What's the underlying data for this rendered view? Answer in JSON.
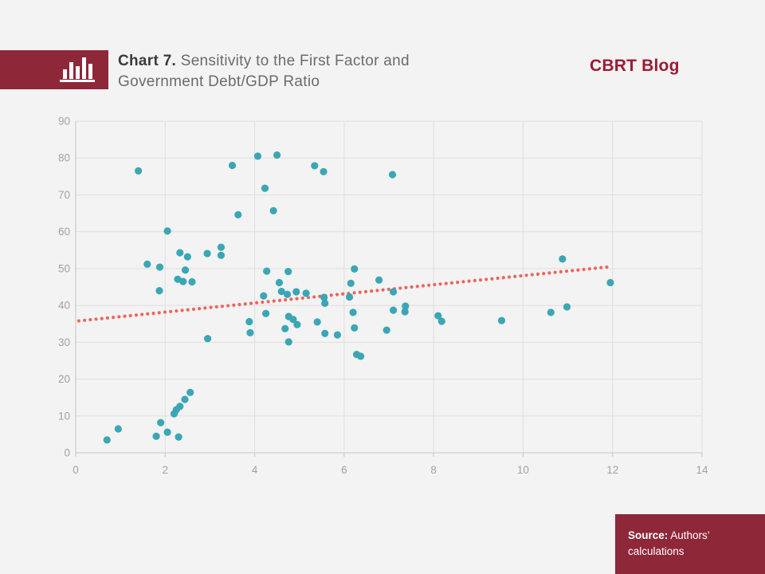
{
  "page": {
    "background": "#f2f3f2"
  },
  "header": {
    "icon": "bar-chart-icon",
    "title_bold": "Chart 7.",
    "title_line1_rest": " Sensitivity to the First Factor and",
    "title_line2": "Government Debt/GDP Ratio",
    "brand": "CBRT Blog"
  },
  "footer": {
    "source_label": "Source:",
    "source_line1_rest": " Authors’",
    "source_line2": "calculations"
  },
  "colors": {
    "maroon": "#8e2738",
    "brand_red": "#9c1b33",
    "point_teal": "#3ba6b5",
    "trend_red": "#ed655b",
    "gridline": "#dedfdf",
    "axis_line": "#c3c6c6",
    "axis_text": "#a0a3a3"
  },
  "chart_data": {
    "type": "scatter",
    "title": "Chart 7. Sensitivity to the First Factor and Government Debt/GDP Ratio",
    "xlabel": "",
    "ylabel": "",
    "xlim": [
      0,
      14
    ],
    "ylim": [
      0,
      90
    ],
    "x_ticks": [
      0,
      2,
      4,
      6,
      8,
      10,
      12,
      14
    ],
    "y_ticks": [
      0,
      10,
      20,
      30,
      40,
      50,
      60,
      70,
      80,
      90
    ],
    "grid": true,
    "legend": false,
    "point_color": "#3ba6b5",
    "trend_color": "#ed655b",
    "points": [
      [
        0.7,
        3.5
      ],
      [
        0.95,
        6.5
      ],
      [
        1.8,
        4.5
      ],
      [
        1.9,
        8.2
      ],
      [
        2.05,
        5.6
      ],
      [
        2.3,
        4.3
      ],
      [
        2.2,
        10.6
      ],
      [
        2.25,
        11.7
      ],
      [
        2.33,
        12.6
      ],
      [
        2.44,
        14.5
      ],
      [
        2.56,
        16.4
      ],
      [
        1.4,
        76.5
      ],
      [
        1.6,
        51.2
      ],
      [
        1.88,
        50.4
      ],
      [
        1.87,
        44.0
      ],
      [
        2.05,
        60.2
      ],
      [
        2.33,
        54.3
      ],
      [
        2.5,
        53.2
      ],
      [
        2.45,
        49.6
      ],
      [
        2.28,
        47.1
      ],
      [
        2.4,
        46.5
      ],
      [
        2.6,
        46.4
      ],
      [
        2.94,
        54.1
      ],
      [
        3.25,
        55.8
      ],
      [
        3.25,
        53.6
      ],
      [
        2.95,
        31.0
      ],
      [
        3.5,
        78.0
      ],
      [
        3.63,
        64.6
      ],
      [
        4.07,
        80.5
      ],
      [
        4.5,
        80.8
      ],
      [
        4.23,
        71.8
      ],
      [
        4.42,
        65.7
      ],
      [
        5.34,
        77.9
      ],
      [
        5.54,
        76.3
      ],
      [
        7.08,
        75.5
      ],
      [
        3.88,
        35.6
      ],
      [
        3.9,
        32.6
      ],
      [
        4.2,
        42.6
      ],
      [
        4.25,
        37.8
      ],
      [
        4.27,
        49.3
      ],
      [
        4.75,
        49.2
      ],
      [
        4.55,
        46.2
      ],
      [
        4.6,
        43.8
      ],
      [
        4.73,
        43.0
      ],
      [
        4.93,
        43.7
      ],
      [
        4.68,
        33.7
      ],
      [
        4.76,
        37.0
      ],
      [
        4.86,
        36.2
      ],
      [
        4.95,
        34.8
      ],
      [
        4.76,
        30.1
      ],
      [
        5.15,
        43.3
      ],
      [
        5.4,
        35.5
      ],
      [
        5.55,
        42.2
      ],
      [
        5.57,
        40.6
      ],
      [
        5.57,
        32.4
      ],
      [
        5.85,
        32.0
      ],
      [
        6.12,
        42.3
      ],
      [
        6.15,
        46.0
      ],
      [
        6.23,
        49.9
      ],
      [
        6.2,
        38.1
      ],
      [
        6.23,
        33.9
      ],
      [
        6.28,
        26.7
      ],
      [
        6.37,
        26.2
      ],
      [
        6.78,
        46.9
      ],
      [
        6.95,
        33.3
      ],
      [
        7.1,
        43.7
      ],
      [
        7.1,
        38.7
      ],
      [
        7.37,
        39.8
      ],
      [
        7.36,
        38.3
      ],
      [
        8.1,
        37.2
      ],
      [
        8.18,
        35.7
      ],
      [
        9.52,
        35.9
      ],
      [
        10.62,
        38.1
      ],
      [
        10.98,
        39.6
      ],
      [
        10.88,
        52.6
      ],
      [
        11.95,
        46.2
      ]
    ],
    "trendline": {
      "style": "dotted",
      "x1": 0.07,
      "y1": 35.8,
      "x2": 11.87,
      "y2": 50.4
    }
  }
}
